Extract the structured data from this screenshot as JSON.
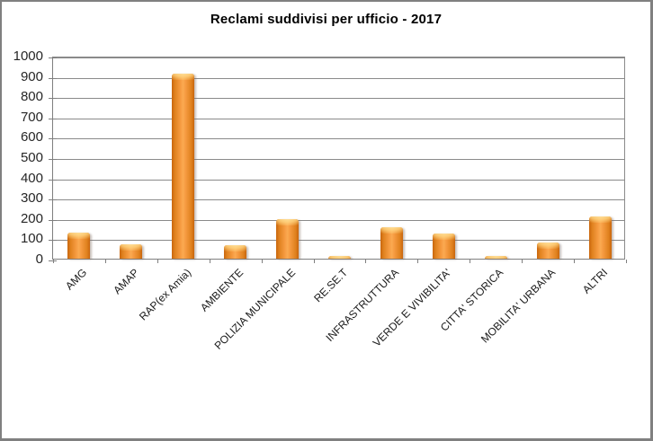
{
  "chart_data": {
    "type": "bar",
    "title": "Reclami suddivisi per ufficio - 2017",
    "categories": [
      "AMG",
      "AMAP",
      "RAP(ex Amia)",
      "AMBIENTE",
      "POLIZIA MUNICIPALE",
      "RE.SE.T",
      "INFRASTRUTTURA",
      "VERDE E VIVIBILITA'",
      "CITTA' STORICA",
      "MOBILITA' URBANA",
      "ALTRI"
    ],
    "values": [
      130,
      70,
      910,
      65,
      195,
      12,
      155,
      125,
      12,
      78,
      210
    ],
    "xlabel": "",
    "ylabel": "",
    "ylim": [
      0,
      1000
    ],
    "ytick_step": 100,
    "grid": "horizontal",
    "legend": "none",
    "colors": {
      "bar_edge": "#C9660D",
      "bar_mid": "#FBAA51",
      "bar_gloss": "#FFE3A0",
      "gridline": "#8A8A8A",
      "axis": "#7F7F7F",
      "frame_border": "#808080",
      "tick_label": "#262626",
      "title": "#000000",
      "background": "#FFFFFF"
    }
  }
}
